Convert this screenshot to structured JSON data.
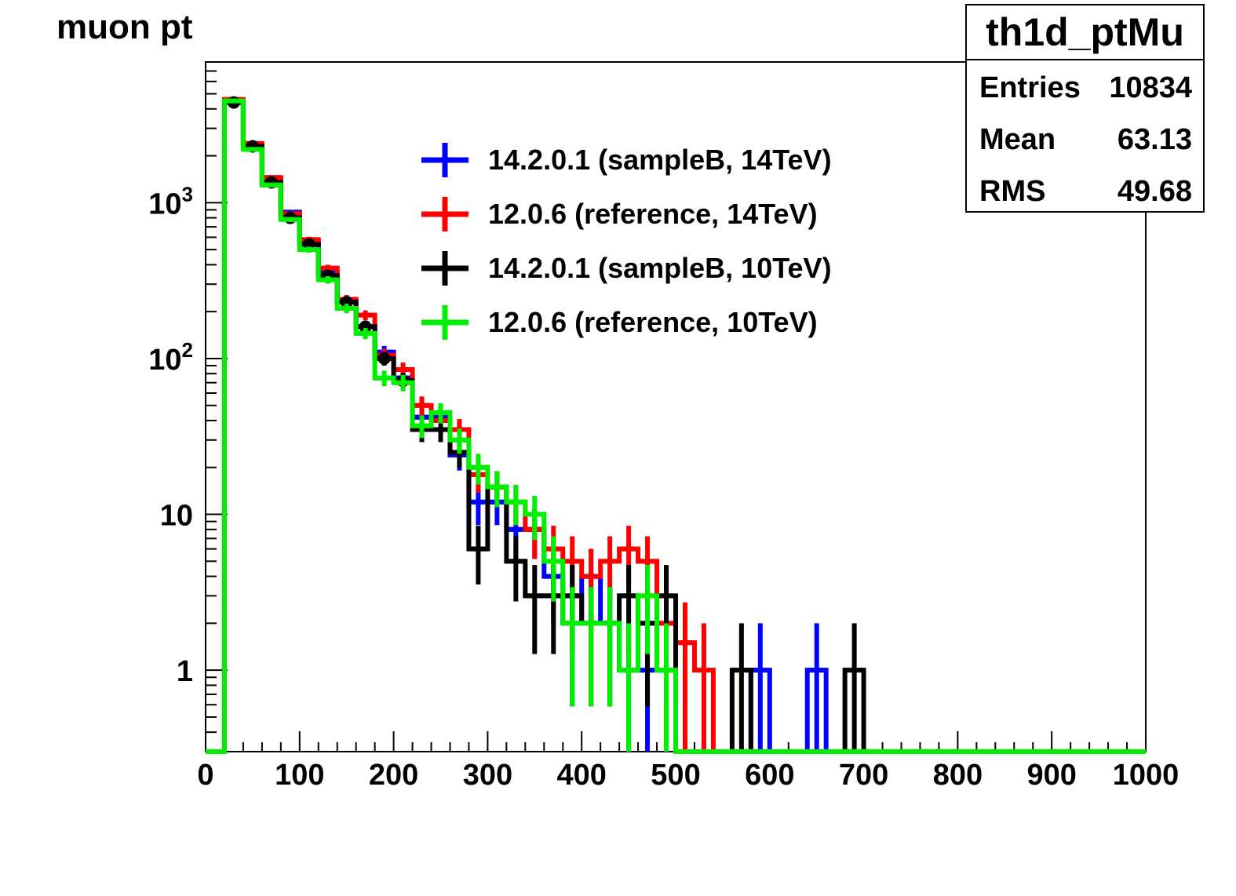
{
  "title": "muon pt",
  "stats": {
    "name": "th1d_ptMu",
    "rows": [
      {
        "label": "Entries",
        "value": "10834"
      },
      {
        "label": "Mean",
        "value": "63.13"
      },
      {
        "label": "RMS",
        "value": "49.68"
      }
    ]
  },
  "chart_data": {
    "type": "histogram",
    "title": "muon pt",
    "xlim": [
      0,
      1000
    ],
    "ylim": [
      0.3,
      8000
    ],
    "yscale": "log",
    "bin_width": 20,
    "x_ticks": [
      0,
      100,
      200,
      300,
      400,
      500,
      600,
      700,
      800,
      900,
      1000
    ],
    "y_ticks": [
      {
        "value": 1,
        "label": "1"
      },
      {
        "value": 10,
        "label": "10"
      },
      {
        "value": 100,
        "label": "10",
        "sup": "2"
      },
      {
        "value": 1000,
        "label": "10",
        "sup": "3"
      }
    ],
    "legend_position": "top-center",
    "series": [
      {
        "name": "14.2.0.1 (sampleB, 14TeV)",
        "color": "#0000ff",
        "bins": [
          [
            20,
            40,
            4500
          ],
          [
            40,
            60,
            2300
          ],
          [
            60,
            80,
            1400
          ],
          [
            80,
            100,
            870
          ],
          [
            100,
            120,
            560
          ],
          [
            120,
            140,
            360
          ],
          [
            140,
            160,
            235
          ],
          [
            160,
            180,
            160
          ],
          [
            180,
            200,
            110
          ],
          [
            200,
            220,
            75
          ],
          [
            220,
            240,
            42
          ],
          [
            240,
            260,
            42
          ],
          [
            260,
            280,
            24
          ],
          [
            280,
            300,
            12
          ],
          [
            300,
            320,
            12
          ],
          [
            320,
            340,
            8
          ],
          [
            340,
            360,
            8
          ],
          [
            360,
            380,
            4
          ],
          [
            380,
            400,
            2
          ],
          [
            400,
            420,
            4
          ],
          [
            420,
            440,
            2
          ],
          [
            440,
            460,
            1
          ],
          [
            460,
            480,
            1
          ],
          [
            480,
            500,
            1
          ],
          [
            580,
            600,
            1
          ],
          [
            640,
            660,
            1
          ]
        ]
      },
      {
        "name": "12.0.6 (reference, 14TeV)",
        "color": "#ff0000",
        "bins": [
          [
            20,
            40,
            4600
          ],
          [
            40,
            60,
            2400
          ],
          [
            60,
            80,
            1450
          ],
          [
            80,
            100,
            850
          ],
          [
            100,
            120,
            580
          ],
          [
            120,
            140,
            380
          ],
          [
            140,
            160,
            240
          ],
          [
            160,
            180,
            190
          ],
          [
            180,
            200,
            105
          ],
          [
            200,
            220,
            85
          ],
          [
            220,
            240,
            50
          ],
          [
            240,
            260,
            40
          ],
          [
            260,
            280,
            35
          ],
          [
            280,
            300,
            18
          ],
          [
            300,
            320,
            15
          ],
          [
            320,
            340,
            12
          ],
          [
            340,
            360,
            8
          ],
          [
            360,
            380,
            6
          ],
          [
            380,
            400,
            5
          ],
          [
            400,
            420,
            4
          ],
          [
            420,
            440,
            5
          ],
          [
            440,
            460,
            6
          ],
          [
            460,
            480,
            5
          ],
          [
            480,
            500,
            2
          ],
          [
            500,
            520,
            1.5
          ],
          [
            520,
            540,
            1
          ]
        ]
      },
      {
        "name": "14.2.0.1 (sampleB, 10TeV)",
        "color": "#000000",
        "bins": [
          [
            20,
            40,
            4400
          ],
          [
            40,
            60,
            2300
          ],
          [
            60,
            80,
            1350
          ],
          [
            80,
            100,
            800
          ],
          [
            100,
            120,
            540
          ],
          [
            120,
            140,
            340
          ],
          [
            140,
            160,
            230
          ],
          [
            160,
            180,
            160
          ],
          [
            180,
            200,
            100
          ],
          [
            200,
            220,
            72
          ],
          [
            220,
            240,
            35
          ],
          [
            240,
            260,
            35
          ],
          [
            260,
            280,
            25
          ],
          [
            280,
            300,
            6
          ],
          [
            300,
            320,
            15
          ],
          [
            320,
            340,
            5
          ],
          [
            340,
            360,
            3
          ],
          [
            360,
            380,
            3
          ],
          [
            380,
            400,
            3
          ],
          [
            400,
            420,
            2
          ],
          [
            420,
            440,
            2
          ],
          [
            440,
            460,
            3
          ],
          [
            460,
            480,
            2
          ],
          [
            480,
            500,
            3
          ],
          [
            560,
            580,
            1
          ],
          [
            680,
            700,
            1
          ]
        ]
      },
      {
        "name": "12.0.6 (reference, 10TeV)",
        "color": "#00ee00",
        "bins": [
          [
            20,
            40,
            4500
          ],
          [
            40,
            60,
            2200
          ],
          [
            60,
            80,
            1300
          ],
          [
            80,
            100,
            780
          ],
          [
            100,
            120,
            500
          ],
          [
            120,
            140,
            320
          ],
          [
            140,
            160,
            210
          ],
          [
            160,
            180,
            145
          ],
          [
            180,
            200,
            75
          ],
          [
            200,
            220,
            70
          ],
          [
            220,
            240,
            37
          ],
          [
            240,
            260,
            45
          ],
          [
            260,
            280,
            30
          ],
          [
            280,
            300,
            20
          ],
          [
            300,
            320,
            15
          ],
          [
            320,
            340,
            12
          ],
          [
            340,
            360,
            10
          ],
          [
            360,
            380,
            5
          ],
          [
            380,
            400,
            2
          ],
          [
            400,
            420,
            2
          ],
          [
            420,
            440,
            2
          ],
          [
            440,
            460,
            1
          ],
          [
            460,
            480,
            3
          ],
          [
            480,
            500,
            1
          ]
        ]
      }
    ]
  }
}
